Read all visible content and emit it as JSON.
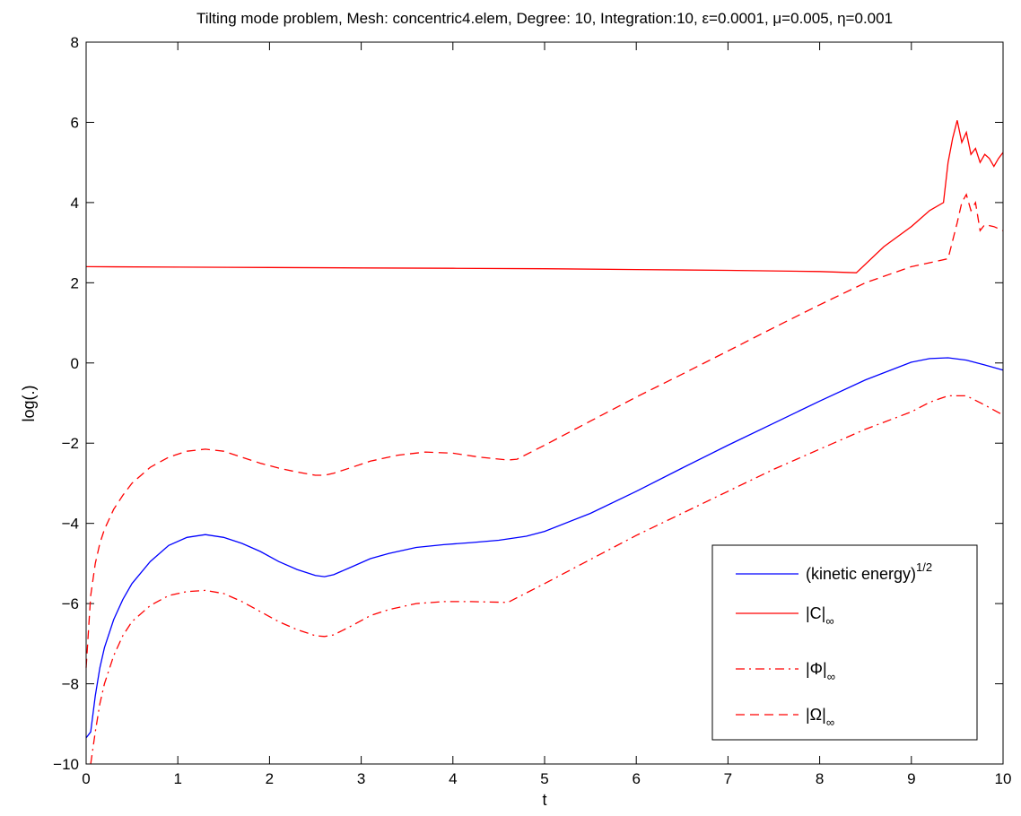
{
  "chart_data": {
    "type": "line",
    "title": "Tilting mode problem, Mesh: concentric4.elem, Degree: 10, Integration:10, ε=0.0001, μ=0.005, η=0.001",
    "xlabel": "t",
    "ylabel": "log(.)",
    "xlim": [
      0,
      10
    ],
    "ylim": [
      -10,
      8
    ],
    "xticks": [
      0,
      1,
      2,
      3,
      4,
      5,
      6,
      7,
      8,
      9,
      10
    ],
    "yticks": [
      -10,
      -8,
      -6,
      -4,
      -2,
      0,
      2,
      4,
      6,
      8
    ],
    "grid": false,
    "legend_position": "bottom-right",
    "series": [
      {
        "name": "(kinetic energy)",
        "name_sup": "1/2",
        "color": "#0000ff",
        "dash": "solid",
        "x": [
          0,
          0.05,
          0.1,
          0.15,
          0.2,
          0.3,
          0.4,
          0.5,
          0.7,
          0.9,
          1.1,
          1.3,
          1.5,
          1.7,
          1.9,
          2.1,
          2.3,
          2.5,
          2.6,
          2.7,
          2.9,
          3.1,
          3.3,
          3.6,
          3.9,
          4.2,
          4.5,
          4.8,
          5.0,
          5.5,
          6.0,
          6.5,
          7.0,
          7.5,
          8.0,
          8.5,
          9.0,
          9.2,
          9.4,
          9.6,
          9.8,
          10.0
        ],
        "y": [
          -9.35,
          -9.2,
          -8.3,
          -7.6,
          -7.1,
          -6.4,
          -5.9,
          -5.5,
          -4.95,
          -4.55,
          -4.35,
          -4.28,
          -4.35,
          -4.5,
          -4.7,
          -4.95,
          -5.15,
          -5.3,
          -5.33,
          -5.28,
          -5.08,
          -4.88,
          -4.75,
          -4.6,
          -4.53,
          -4.48,
          -4.42,
          -4.32,
          -4.2,
          -3.75,
          -3.2,
          -2.62,
          -2.05,
          -1.5,
          -0.95,
          -0.42,
          0.02,
          0.11,
          0.13,
          0.07,
          -0.05,
          -0.18
        ]
      },
      {
        "name": "|C|",
        "name_sub": "∞",
        "color": "#ff0000",
        "dash": "solid",
        "x": [
          0,
          1,
          2,
          3,
          4,
          5,
          6,
          7,
          8,
          8.4,
          8.7,
          9.0,
          9.2,
          9.35,
          9.4,
          9.45,
          9.5,
          9.55,
          9.6,
          9.65,
          9.7,
          9.75,
          9.8,
          9.85,
          9.9,
          9.95,
          10.0
        ],
        "y": [
          2.4,
          2.39,
          2.38,
          2.37,
          2.36,
          2.35,
          2.33,
          2.31,
          2.28,
          2.25,
          2.9,
          3.4,
          3.8,
          4.0,
          5.0,
          5.6,
          6.05,
          5.5,
          5.75,
          5.2,
          5.35,
          5.0,
          5.2,
          5.1,
          4.9,
          5.1,
          5.25
        ]
      },
      {
        "name": "|Φ|",
        "name_sub": "∞",
        "color": "#ff0000",
        "dash": "dashdot",
        "x": [
          0.05,
          0.1,
          0.15,
          0.2,
          0.3,
          0.4,
          0.5,
          0.7,
          0.9,
          1.1,
          1.3,
          1.5,
          1.7,
          1.9,
          2.1,
          2.3,
          2.5,
          2.6,
          2.7,
          2.9,
          3.1,
          3.3,
          3.6,
          3.9,
          4.2,
          4.6,
          5.0,
          5.5,
          6.0,
          6.5,
          7.0,
          7.5,
          8.0,
          8.5,
          9.0,
          9.2,
          9.4,
          9.6,
          9.8,
          10.0
        ],
        "y": [
          -10.0,
          -9.2,
          -8.5,
          -8.0,
          -7.3,
          -6.8,
          -6.45,
          -6.05,
          -5.8,
          -5.7,
          -5.67,
          -5.75,
          -5.95,
          -6.2,
          -6.45,
          -6.65,
          -6.8,
          -6.82,
          -6.78,
          -6.55,
          -6.3,
          -6.15,
          -6.0,
          -5.95,
          -5.95,
          -5.97,
          -5.5,
          -4.9,
          -4.3,
          -3.75,
          -3.2,
          -2.65,
          -2.15,
          -1.65,
          -1.22,
          -0.98,
          -0.82,
          -0.82,
          -1.05,
          -1.3
        ]
      },
      {
        "name": "|Ω|",
        "name_sub": "∞",
        "color": "#ff0000",
        "dash": "dashed",
        "x": [
          0,
          0.03,
          0.05,
          0.1,
          0.15,
          0.2,
          0.3,
          0.4,
          0.5,
          0.7,
          0.9,
          1.1,
          1.3,
          1.5,
          1.7,
          1.9,
          2.1,
          2.3,
          2.5,
          2.6,
          2.7,
          2.9,
          3.1,
          3.4,
          3.7,
          4.0,
          4.3,
          4.6,
          4.7,
          5.0,
          5.5,
          6.0,
          6.5,
          7.0,
          7.5,
          8.0,
          8.5,
          9.0,
          9.2,
          9.4,
          9.5,
          9.55,
          9.6,
          9.65,
          9.7,
          9.75,
          9.8,
          9.9,
          10.0
        ],
        "y": [
          -7.6,
          -6.5,
          -5.8,
          -5.0,
          -4.5,
          -4.15,
          -3.65,
          -3.3,
          -3.0,
          -2.6,
          -2.35,
          -2.2,
          -2.15,
          -2.2,
          -2.35,
          -2.5,
          -2.62,
          -2.72,
          -2.8,
          -2.8,
          -2.75,
          -2.6,
          -2.45,
          -2.3,
          -2.22,
          -2.25,
          -2.35,
          -2.42,
          -2.4,
          -2.05,
          -1.45,
          -0.85,
          -0.28,
          0.3,
          0.88,
          1.45,
          2.0,
          2.4,
          2.5,
          2.6,
          3.5,
          4.0,
          4.2,
          3.8,
          4.0,
          3.3,
          3.45,
          3.4,
          3.3
        ]
      }
    ]
  }
}
